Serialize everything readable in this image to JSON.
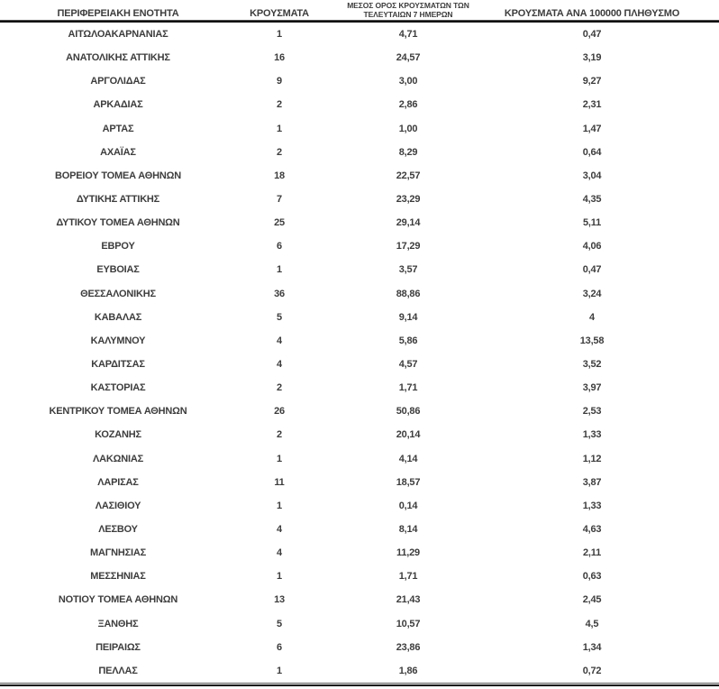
{
  "colors": {
    "text": "#3d3d3d",
    "rule": "#000000",
    "background": "#ffffff"
  },
  "table": {
    "headers": {
      "col1": "ΠΕΡΙΦΕΡΕΙΑΚΗ ΕΝΟΤΗΤΑ",
      "col2": "ΚΡΟΥΣΜΑΤΑ",
      "col3_line1": "ΜΕΣΟΣ ΟΡΟΣ ΚΡΟΥΣΜΑΤΩΝ ΤΩΝ",
      "col3_line2": "ΤΕΛΕΥΤΑΙΩΝ 7 ΗΜΕΡΩΝ",
      "col4": "ΚΡΟΥΣΜΑΤΑ ΑΝΑ 100000 ΠΛΗΘΥΣΜΟ"
    },
    "rows": [
      {
        "region": "ΑΙΤΩΛΟΑΚΑΡΝΑΝΙΑΣ",
        "cases": "1",
        "avg7": "4,71",
        "per100k": "0,47"
      },
      {
        "region": "ΑΝΑΤΟΛΙΚΗΣ ΑΤΤΙΚΗΣ",
        "cases": "16",
        "avg7": "24,57",
        "per100k": "3,19"
      },
      {
        "region": "ΑΡΓΟΛΙΔΑΣ",
        "cases": "9",
        "avg7": "3,00",
        "per100k": "9,27"
      },
      {
        "region": "ΑΡΚΑΔΙΑΣ",
        "cases": "2",
        "avg7": "2,86",
        "per100k": "2,31"
      },
      {
        "region": "ΑΡΤΑΣ",
        "cases": "1",
        "avg7": "1,00",
        "per100k": "1,47"
      },
      {
        "region": "ΑΧΑΪΑΣ",
        "cases": "2",
        "avg7": "8,29",
        "per100k": "0,64"
      },
      {
        "region": "ΒΟΡΕΙΟΥ ΤΟΜΕΑ ΑΘΗΝΩΝ",
        "cases": "18",
        "avg7": "22,57",
        "per100k": "3,04"
      },
      {
        "region": "ΔΥΤΙΚΗΣ ΑΤΤΙΚΗΣ",
        "cases": "7",
        "avg7": "23,29",
        "per100k": "4,35"
      },
      {
        "region": "ΔΥΤΙΚΟΥ ΤΟΜΕΑ ΑΘΗΝΩΝ",
        "cases": "25",
        "avg7": "29,14",
        "per100k": "5,11"
      },
      {
        "region": "ΕΒΡΟΥ",
        "cases": "6",
        "avg7": "17,29",
        "per100k": "4,06"
      },
      {
        "region": "ΕΥΒΟΙΑΣ",
        "cases": "1",
        "avg7": "3,57",
        "per100k": "0,47"
      },
      {
        "region": "ΘΕΣΣΑΛΟΝΙΚΗΣ",
        "cases": "36",
        "avg7": "88,86",
        "per100k": "3,24"
      },
      {
        "region": "ΚΑΒΑΛΑΣ",
        "cases": "5",
        "avg7": "9,14",
        "per100k": "4"
      },
      {
        "region": "ΚΑΛΥΜΝΟΥ",
        "cases": "4",
        "avg7": "5,86",
        "per100k": "13,58"
      },
      {
        "region": "ΚΑΡΔΙΤΣΑΣ",
        "cases": "4",
        "avg7": "4,57",
        "per100k": "3,52"
      },
      {
        "region": "ΚΑΣΤΟΡΙΑΣ",
        "cases": "2",
        "avg7": "1,71",
        "per100k": "3,97"
      },
      {
        "region": "ΚΕΝΤΡΙΚΟΥ ΤΟΜΕΑ ΑΘΗΝΩΝ",
        "cases": "26",
        "avg7": "50,86",
        "per100k": "2,53"
      },
      {
        "region": "ΚΟΖΑΝΗΣ",
        "cases": "2",
        "avg7": "20,14",
        "per100k": "1,33"
      },
      {
        "region": "ΛΑΚΩΝΙΑΣ",
        "cases": "1",
        "avg7": "4,14",
        "per100k": "1,12"
      },
      {
        "region": "ΛΑΡΙΣΑΣ",
        "cases": "11",
        "avg7": "18,57",
        "per100k": "3,87"
      },
      {
        "region": "ΛΑΣΙΘΙΟΥ",
        "cases": "1",
        "avg7": "0,14",
        "per100k": "1,33"
      },
      {
        "region": "ΛΕΣΒΟΥ",
        "cases": "4",
        "avg7": "8,14",
        "per100k": "4,63"
      },
      {
        "region": "ΜΑΓΝΗΣΙΑΣ",
        "cases": "4",
        "avg7": "11,29",
        "per100k": "2,11"
      },
      {
        "region": "ΜΕΣΣΗΝΙΑΣ",
        "cases": "1",
        "avg7": "1,71",
        "per100k": "0,63"
      },
      {
        "region": "ΝΟΤΙΟΥ ΤΟΜΕΑ ΑΘΗΝΩΝ",
        "cases": "13",
        "avg7": "21,43",
        "per100k": "2,45"
      },
      {
        "region": "ΞΑΝΘΗΣ",
        "cases": "5",
        "avg7": "10,57",
        "per100k": "4,5"
      },
      {
        "region": "ΠΕΙΡΑΙΩΣ",
        "cases": "6",
        "avg7": "23,86",
        "per100k": "1,34"
      },
      {
        "region": "ΠΕΛΛΑΣ",
        "cases": "1",
        "avg7": "1,86",
        "per100k": "0,72"
      }
    ]
  }
}
